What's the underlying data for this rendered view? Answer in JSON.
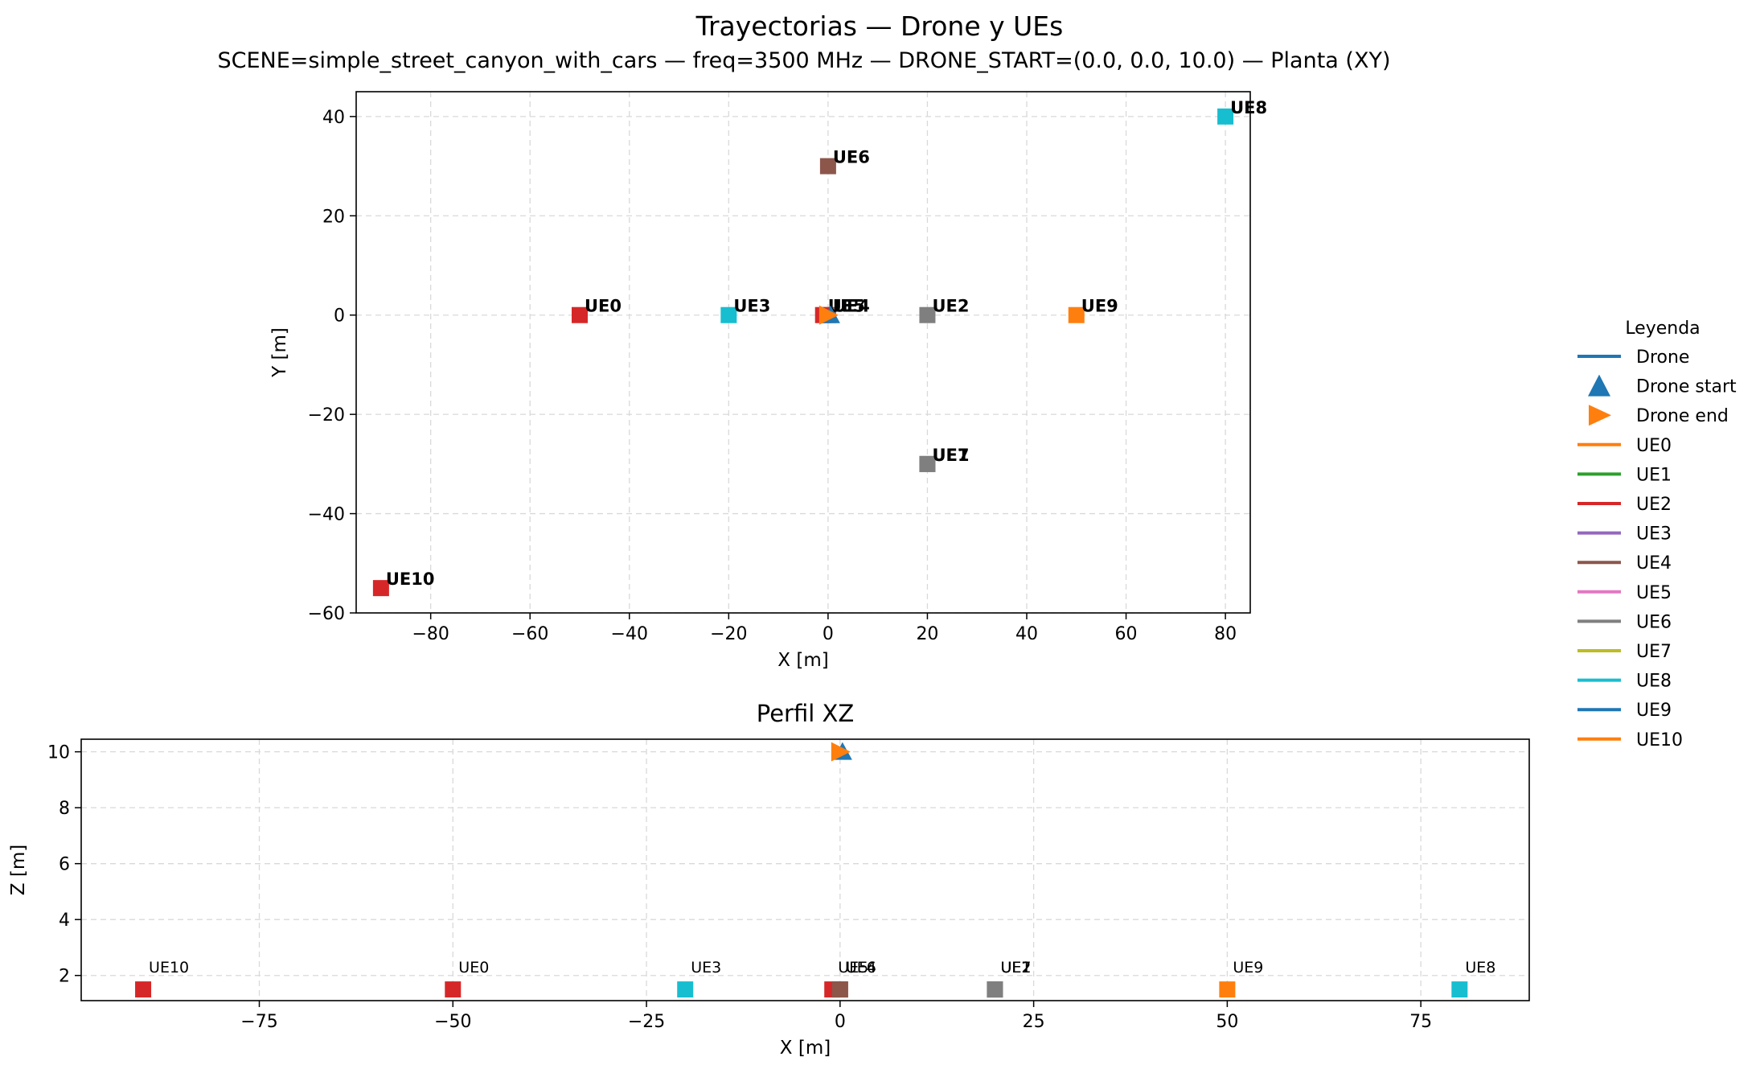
{
  "figure": {
    "title": "Trayectorias — Drone y UEs",
    "subtitle": "SCENE=simple_street_canyon_with_cars — freq=3500 MHz — DRONE_START=(0.0, 0.0, 10.0) — Planta (XY)"
  },
  "chart_data": [
    {
      "type": "scatter",
      "title": "",
      "xlabel": "X [m]",
      "ylabel": "Y [m]",
      "xlim": [
        -95,
        85
      ],
      "ylim": [
        -60,
        45
      ],
      "xticks": [
        -80,
        -60,
        -40,
        -20,
        0,
        20,
        40,
        60,
        80
      ],
      "yticks": [
        -60,
        -40,
        -20,
        0,
        20,
        40
      ],
      "grid": true,
      "drone": {
        "start": [
          0,
          0
        ],
        "end": [
          0,
          0
        ]
      },
      "points": [
        {
          "label": "UE0",
          "x": -50,
          "y": 0,
          "color": "#d62728"
        },
        {
          "label": "UE1",
          "x": 20,
          "y": -30,
          "color": "#7f7f7f"
        },
        {
          "label": "UE2",
          "x": 20,
          "y": 0,
          "color": "#7f7f7f"
        },
        {
          "label": "UE3",
          "x": -20,
          "y": 0,
          "color": "#17becf"
        },
        {
          "label": "UE4",
          "x": 0,
          "y": 0,
          "color": "#8c564b"
        },
        {
          "label": "UE5",
          "x": -1,
          "y": 0,
          "color": "#d62728"
        },
        {
          "label": "UE6",
          "x": 0,
          "y": 30,
          "color": "#8c564b"
        },
        {
          "label": "UE7",
          "x": 20,
          "y": -30,
          "color": "#7f7f7f"
        },
        {
          "label": "UE8",
          "x": 80,
          "y": 40,
          "color": "#17becf"
        },
        {
          "label": "UE9",
          "x": 50,
          "y": 0,
          "color": "#ff7f0e"
        },
        {
          "label": "UE10",
          "x": -90,
          "y": -55,
          "color": "#d62728"
        }
      ]
    },
    {
      "type": "scatter",
      "title": "Perfil XZ",
      "xlabel": "X [m]",
      "ylabel": "Z [m]",
      "xlim": [
        -98,
        89
      ],
      "ylim": [
        1.1,
        10.45
      ],
      "xticks": [
        -75,
        -50,
        -25,
        0,
        25,
        50,
        75
      ],
      "yticks": [
        2,
        4,
        6,
        8,
        10
      ],
      "grid": true,
      "drone": {
        "start": [
          0,
          10
        ],
        "end": [
          0,
          10
        ]
      },
      "points": [
        {
          "label": "UE0",
          "x": -50,
          "z": 1.5,
          "color": "#d62728"
        },
        {
          "label": "UE1",
          "x": 20,
          "z": 1.5,
          "color": "#7f7f7f"
        },
        {
          "label": "UE2",
          "x": 20,
          "z": 1.5,
          "color": "#7f7f7f"
        },
        {
          "label": "UE3",
          "x": -20,
          "z": 1.5,
          "color": "#17becf"
        },
        {
          "label": "UE4",
          "x": 0,
          "z": 1.5,
          "color": "#8c564b"
        },
        {
          "label": "UE5",
          "x": -1,
          "z": 1.5,
          "color": "#d62728"
        },
        {
          "label": "UE6",
          "x": 0,
          "z": 1.5,
          "color": "#8c564b"
        },
        {
          "label": "UE7",
          "x": 20,
          "z": 1.5,
          "color": "#7f7f7f"
        },
        {
          "label": "UE8",
          "x": 80,
          "z": 1.5,
          "color": "#17becf"
        },
        {
          "label": "UE9",
          "x": 50,
          "z": 1.5,
          "color": "#ff7f0e"
        },
        {
          "label": "UE10",
          "x": -90,
          "z": 1.5,
          "color": "#d62728"
        }
      ]
    }
  ],
  "legend": {
    "title": "Leyenda",
    "placement": "right",
    "entries": [
      {
        "label": "Drone",
        "kind": "line",
        "color": "#1f77b4"
      },
      {
        "label": "Drone start",
        "kind": "triangle-up",
        "color": "#1f77b4"
      },
      {
        "label": "Drone end",
        "kind": "triangle-right",
        "color": "#ff7f0e"
      },
      {
        "label": "UE0",
        "kind": "line",
        "color": "#ff7f0e"
      },
      {
        "label": "UE1",
        "kind": "line",
        "color": "#2ca02c"
      },
      {
        "label": "UE2",
        "kind": "line",
        "color": "#d62728"
      },
      {
        "label": "UE3",
        "kind": "line",
        "color": "#9467bd"
      },
      {
        "label": "UE4",
        "kind": "line",
        "color": "#8c564b"
      },
      {
        "label": "UE5",
        "kind": "line",
        "color": "#e377c2"
      },
      {
        "label": "UE6",
        "kind": "line",
        "color": "#7f7f7f"
      },
      {
        "label": "UE7",
        "kind": "line",
        "color": "#bcbd22"
      },
      {
        "label": "UE8",
        "kind": "line",
        "color": "#17becf"
      },
      {
        "label": "UE9",
        "kind": "line",
        "color": "#1f77b4"
      },
      {
        "label": "UE10",
        "kind": "line",
        "color": "#ff7f0e"
      }
    ]
  }
}
